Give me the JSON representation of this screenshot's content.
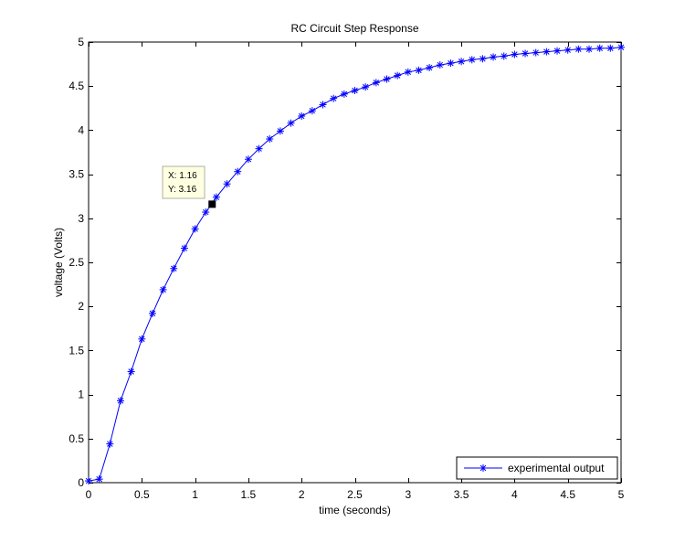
{
  "chart_data": {
    "type": "line",
    "title": "RC Circuit Step Response",
    "xlabel": "time (seconds)",
    "ylabel": "voltage (Volts)",
    "xlim": [
      0,
      5
    ],
    "ylim": [
      0,
      5
    ],
    "xticks": [
      0,
      0.5,
      1,
      1.5,
      2,
      2.5,
      3,
      3.5,
      4,
      4.5,
      5
    ],
    "yticks": [
      0,
      0.5,
      1,
      1.5,
      2,
      2.5,
      3,
      3.5,
      4,
      4.5,
      5
    ],
    "xtick_labels": [
      "0",
      "0.5",
      "1",
      "1.5",
      "2",
      "2.5",
      "3",
      "3.5",
      "4",
      "4.5",
      "5"
    ],
    "ytick_labels": [
      "0",
      "0.5",
      "1",
      "1.5",
      "2",
      "2.5",
      "3",
      "3.5",
      "4",
      "4.5",
      "5"
    ],
    "grid": false,
    "legend_position": "bottom-right",
    "series": [
      {
        "name": "experimental output",
        "color": "#0000ff",
        "marker": "asterisk",
        "x": [
          0,
          0.1,
          0.2,
          0.3,
          0.4,
          0.5,
          0.6,
          0.7,
          0.8,
          0.9,
          1.0,
          1.1,
          1.2,
          1.3,
          1.4,
          1.5,
          1.6,
          1.7,
          1.8,
          1.9,
          2.0,
          2.1,
          2.2,
          2.3,
          2.4,
          2.5,
          2.6,
          2.7,
          2.8,
          2.9,
          3.0,
          3.1,
          3.2,
          3.3,
          3.4,
          3.5,
          3.6,
          3.7,
          3.8,
          3.9,
          4.0,
          4.1,
          4.2,
          4.3,
          4.4,
          4.5,
          4.6,
          4.7,
          4.8,
          4.9,
          5.0
        ],
        "y": [
          0.02,
          0.04,
          0.44,
          0.93,
          1.26,
          1.63,
          1.92,
          2.19,
          2.43,
          2.66,
          2.88,
          3.07,
          3.24,
          3.39,
          3.53,
          3.67,
          3.79,
          3.9,
          3.99,
          4.08,
          4.16,
          4.22,
          4.29,
          4.36,
          4.41,
          4.45,
          4.49,
          4.54,
          4.58,
          4.62,
          4.66,
          4.68,
          4.71,
          4.74,
          4.76,
          4.78,
          4.8,
          4.81,
          4.83,
          4.84,
          4.86,
          4.87,
          4.88,
          4.89,
          4.9,
          4.91,
          4.92,
          4.92,
          4.93,
          4.93,
          4.94
        ]
      }
    ],
    "data_tip": {
      "x": 1.16,
      "y": 3.16,
      "x_text": "X: 1.16",
      "y_text": "Y: 3.16"
    }
  },
  "colors": {
    "axis": "#000000",
    "background": "#ffffff",
    "series": "#0000ff",
    "tip_background": "#ffffe1",
    "tip_border": "#b0b0a0"
  }
}
